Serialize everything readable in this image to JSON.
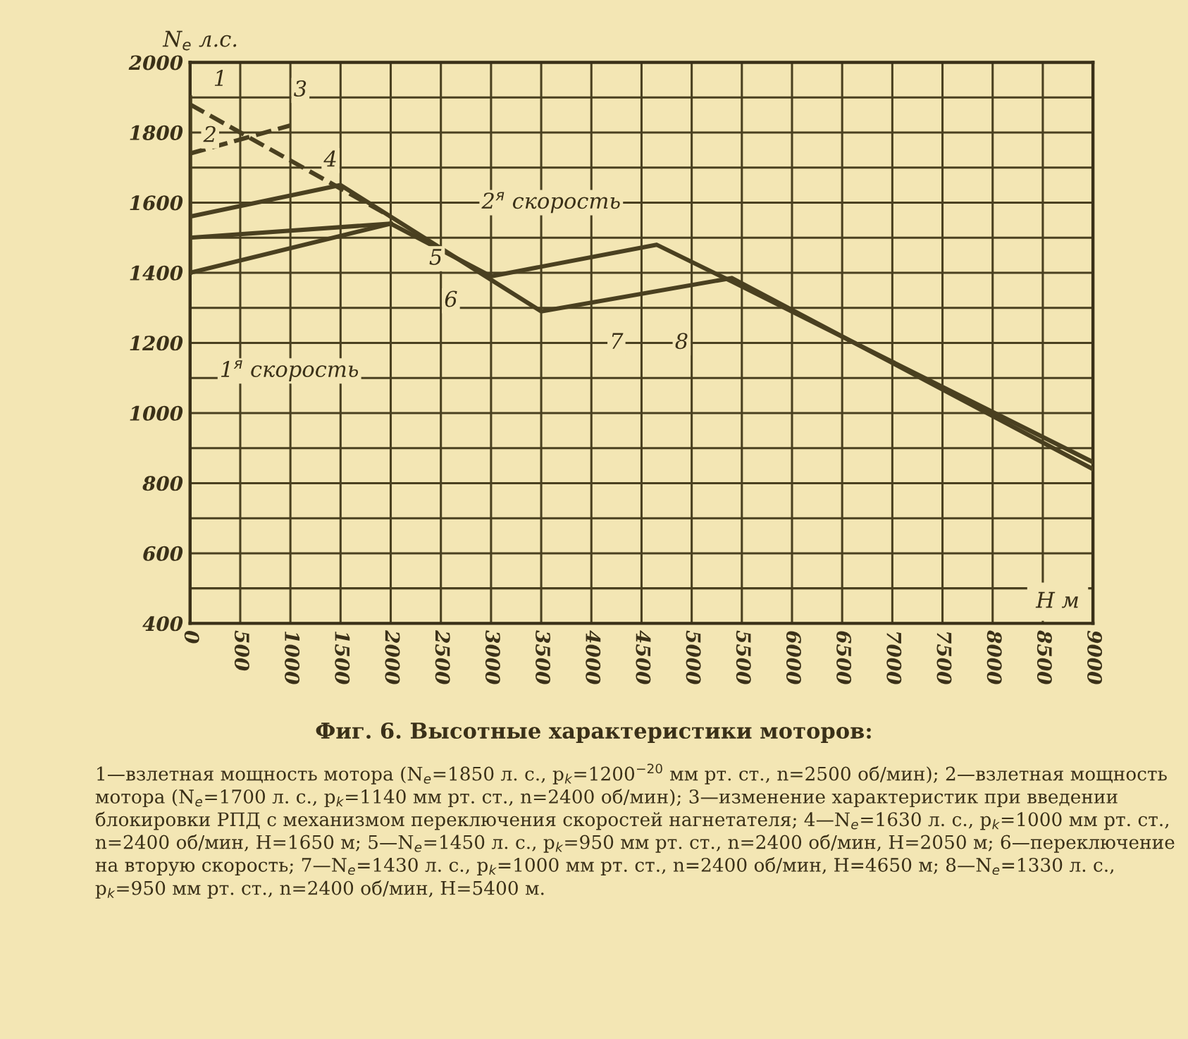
{
  "chart_data": {
    "type": "line",
    "title": "Фиг. 6. Высотные характеристики моторов:",
    "xlabel": "H м",
    "ylabel": "N$_{e}$ л.с.",
    "series": [
      {
        "color": "#4a4020",
        "line_style": "dashed",
        "x": [
          0,
          1500,
          2000
        ],
        "values": [
          1880,
          1640,
          1560
        ]
      },
      {
        "color": "#4a4020",
        "line_style": "dashed",
        "x": [
          0,
          1000
        ],
        "values": [
          1740,
          1820
        ]
      },
      {
        "color": "#4a4020",
        "line_style": "solid",
        "x": [
          0,
          0
        ],
        "values": [
          1400,
          1900
        ]
      },
      {
        "color": "#4a4020",
        "line_style": "solid",
        "x": [
          0,
          1500,
          3500,
          5400,
          9000
        ],
        "values": [
          1560,
          1650,
          1290,
          1385,
          840
        ]
      },
      {
        "color": "#4a4020",
        "line_style": "solid",
        "x": [
          0,
          2000,
          3000,
          4650,
          5400,
          9000
        ],
        "values": [
          1400,
          1540,
          1390,
          1480,
          1375,
          860
        ]
      },
      {
        "color": "#4a4020",
        "line_style": "solid",
        "x": [
          0,
          2000
        ],
        "values": [
          1500,
          1540
        ]
      }
    ],
    "xlim": [
      0,
      9000
    ],
    "ylim": [
      400,
      2000
    ],
    "xticks": [
      0,
      500,
      1000,
      1500,
      2000,
      2500,
      3000,
      3500,
      4000,
      4500,
      5000,
      5500,
      6000,
      6500,
      7000,
      7500,
      8000,
      8500,
      9000
    ],
    "yticks": [
      400,
      {
        "value": 500,
        "label": null
      },
      600,
      {
        "value": 700,
        "label": null
      },
      800,
      {
        "value": 900,
        "label": null
      },
      1000,
      {
        "value": 1100,
        "label": null
      },
      1200,
      {
        "value": 1300,
        "label": null
      },
      1400,
      {
        "value": 1500,
        "label": null
      },
      1600,
      {
        "value": 1700,
        "label": null
      },
      1800,
      {
        "value": 1900,
        "label": null
      },
      2000
    ],
    "grid": true,
    "annotations": [
      {
        "text": "1",
        "x": 300,
        "y": 1950
      },
      {
        "text": "2",
        "x": 200,
        "y": 1790
      },
      {
        "text": "3",
        "x": 1100,
        "y": 1920
      },
      {
        "text": "4",
        "x": 1400,
        "y": 1720
      },
      {
        "text": "5",
        "x": 2450,
        "y": 1440
      },
      {
        "text": "6",
        "x": 2600,
        "y": 1320
      },
      {
        "text": "7",
        "x": 4250,
        "y": 1200
      },
      {
        "text": "8",
        "x": 4900,
        "y": 1200
      },
      "1$^{я}$ скорость",
      "2$^{я}$ скорость",
      "1—взлетная мощность мотора (N$_{e}$=1850 л. с., p$_{k}$=1200$^{−20}$ мм рт. ст., n=2500 об/мин); 2—взлетная мощность мотора (N$_{e}$=1700 л. с., p$_{k}$=1140 мм рт. ст., n=2400 об/мин); 3—изменение характеристик при введении блокировки РПД с механизмом переключения скоростей нагнетателя; 4—N$_{e}$=1630 л. с., p$_{k}$=1000 мм рт. ст., n=2400 об/мин, H=1650 м; 5—N$_{e}$=1450 л. с., p$_{k}$=950 мм рт. ст., n=2400 об/мин, H=2050 м; 6—переключение на вторую скорость; 7—N$_{e}$=1430 л. с., p$_{k}$=1000 мм рт. ст., n=2400 об/мин, H=4650 м; 8—N$_{e}$=1330 л. с., p$_{k}$=950 мм рт. ст., n=2400 об/мин, H=5400 м."
    ]
  }
}
